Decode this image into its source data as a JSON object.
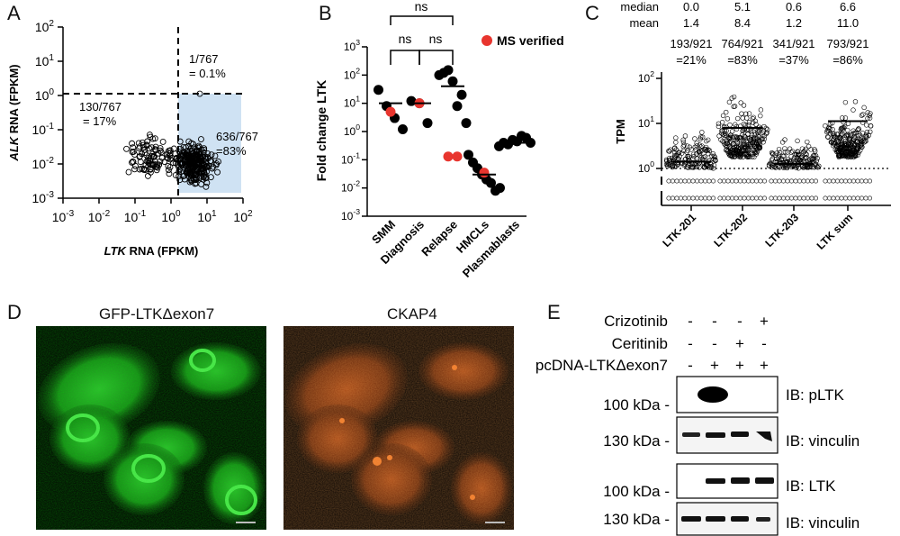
{
  "panels": {
    "A": {
      "label": "A",
      "chart_data": {
        "type": "scatter",
        "xlabel_italic": "LTK",
        "xlabel_rest": " RNA (FPKM)",
        "ylabel_italic": "ALK",
        "ylabel_rest": " RNA (FPKM)",
        "x_ticks": [
          "10-3",
          "10-2",
          "10-1",
          "100",
          "101",
          "102"
        ],
        "y_ticks": [
          "10-3",
          "10-2",
          "10-1",
          "100",
          "101",
          "102"
        ],
        "x_log_range": [
          -3,
          2
        ],
        "y_log_range": [
          -3,
          2
        ],
        "annotations": [
          "1/767",
          "= 0.1%",
          "130/767",
          "= 17%",
          "636/767",
          "=83%"
        ],
        "highlight_color": "#cfe2f3"
      }
    },
    "B": {
      "label": "B",
      "chart_data": {
        "type": "scatter",
        "ylabel": "Fold change LTK",
        "y_log_range": [
          -3,
          3
        ],
        "y_ticks": [
          "10-3",
          "10-2",
          "10-1",
          "100",
          "101",
          "102",
          "103"
        ],
        "categories": [
          "SMM",
          "Diagnosis",
          "Relapse",
          "HMCLs",
          "Plasmablasts"
        ],
        "series": [
          {
            "name": "",
            "values": [
              [
                30,
                8,
                3,
                1.2
              ],
              [
                12,
                10,
                2
              ],
              [
                100,
                120,
                150,
                60,
                8,
                20,
                2
              ],
              [
                0.15,
                0.08,
                0.05,
                0.03,
                0.02,
                0.015,
                0.008,
                0.01
              ],
              [
                0.3,
                0.4,
                0.35,
                0.5,
                0.45,
                0.7,
                0.6,
                0.4
              ]
            ]
          },
          {
            "name": "MS verified",
            "values": [
              [
                5
              ],
              [
                10
              ],
              [
                0.13,
                0.13
              ],
              [
                0.035
              ],
              []
            ]
          }
        ],
        "medians": [
          10,
          10,
          40,
          0.03,
          0.4
        ],
        "sig": [
          "ns",
          "ns",
          "ns"
        ],
        "legend": "MS verified",
        "ms_color": "#e8352e"
      }
    },
    "C": {
      "label": "C",
      "chart_data": {
        "type": "scatter",
        "ylabel": "TPM",
        "y_log_range": [
          0,
          2
        ],
        "y_ticks": [
          "100",
          "101",
          "102"
        ],
        "categories": [
          "LTK-201",
          "LTK-202",
          "LTK-203",
          "LTK sum"
        ],
        "median_label": "median",
        "mean_label": "mean",
        "median": [
          "0.0",
          "5.1",
          "0.6",
          "6.6"
        ],
        "mean": [
          "1.4",
          "8.4",
          "1.2",
          "11.0"
        ],
        "fractions": [
          "193/921",
          "764/921",
          "341/921",
          "793/921"
        ],
        "percents": [
          "=21%",
          "=83%",
          "=37%",
          "=86%"
        ],
        "log_medians": [
          0.15,
          0.9,
          0.1,
          1.05
        ]
      }
    },
    "D": {
      "label": "D",
      "titles": [
        "GFP-LTKΔexon7",
        "CKAP4"
      ]
    },
    "E": {
      "label": "E",
      "treatments": [
        {
          "name": "Crizotinib",
          "signs": [
            "-",
            "-",
            "-",
            "+"
          ]
        },
        {
          "name": "Ceritinib",
          "signs": [
            "-",
            "-",
            "+",
            "-"
          ]
        },
        {
          "name": "pcDNA-LTKΔexon7",
          "signs": [
            "-",
            "+",
            "+",
            "+"
          ]
        }
      ],
      "blots": [
        {
          "mw": "100 kDa -",
          "ib": "IB: pLTK"
        },
        {
          "mw": "130 kDa -",
          "ib": "IB: vinculin"
        },
        {
          "mw": "100 kDa -",
          "ib": "IB: LTK"
        },
        {
          "mw": "130 kDa -",
          "ib": "IB: vinculin"
        }
      ]
    }
  }
}
